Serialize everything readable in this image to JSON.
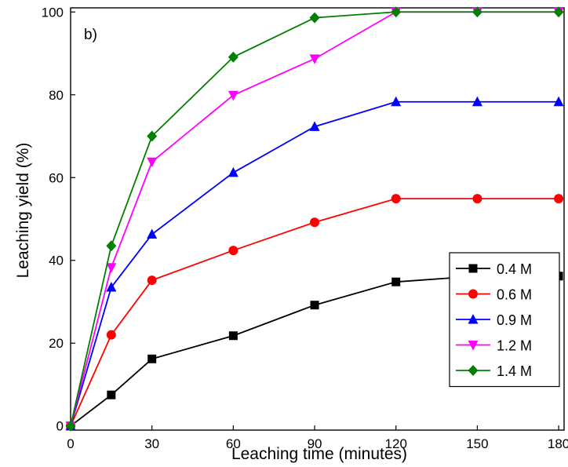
{
  "chart_data": {
    "type": "line",
    "panel_label": "b)",
    "xlabel": "Leaching time (minutes)",
    "ylabel": "Leaching yield (%)",
    "xlim": [
      0,
      182
    ],
    "ylim": [
      -1,
      101
    ],
    "xticks": [
      0,
      30,
      60,
      90,
      120,
      150,
      180
    ],
    "yticks": [
      0,
      20,
      40,
      60,
      80,
      100
    ],
    "grid": false,
    "legend_position": "bottom-right",
    "x": [
      0,
      15,
      30,
      60,
      90,
      120,
      150,
      180
    ],
    "series": [
      {
        "name": "0.4 M",
        "color": "#000000",
        "marker": "square",
        "values": [
          0,
          7.5,
          16.2,
          21.8,
          29.2,
          34.8,
          36.2,
          36.2
        ]
      },
      {
        "name": "0.6 M",
        "color": "#ff0000",
        "marker": "circle",
        "values": [
          0,
          22.0,
          35.2,
          42.4,
          49.2,
          54.9,
          54.9,
          54.9
        ]
      },
      {
        "name": "0.9 M",
        "color": "#0000ff",
        "marker": "triangle-up",
        "values": [
          0,
          33.5,
          46.3,
          61.2,
          72.3,
          78.3,
          78.3,
          78.3
        ]
      },
      {
        "name": "1.2 M",
        "color": "#ff00ff",
        "marker": "triangle-down",
        "values": [
          0,
          38.3,
          63.8,
          79.9,
          88.7,
          100,
          100,
          100
        ]
      },
      {
        "name": "1.4 M",
        "color": "#008000",
        "marker": "diamond",
        "values": [
          0,
          43.5,
          70.0,
          89.1,
          98.6,
          100,
          100,
          100
        ]
      }
    ]
  }
}
